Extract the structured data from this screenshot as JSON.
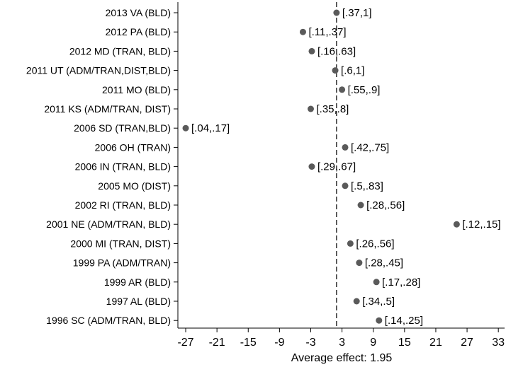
{
  "chart_data": {
    "type": "scatter",
    "title": "",
    "xlabel_prefix": "Average effect:",
    "average_effect": 1.95,
    "xlim": [
      -28.5,
      34.2
    ],
    "xticks": [
      -27,
      -21,
      -15,
      -9,
      -3,
      3,
      9,
      15,
      21,
      27,
      33
    ],
    "xtick_labels": [
      "-27",
      "-21",
      "-15",
      "-9",
      "-3",
      "3",
      "9",
      "15",
      "21",
      "27",
      "33"
    ],
    "grid": false,
    "legend": "none",
    "marker_color": "#5a5a5a",
    "reference_line": {
      "x": 1.95,
      "style": "dashed"
    },
    "points": [
      {
        "label": "2013 VA (BLD)",
        "x": 1.95,
        "interval": "[.37,1]"
      },
      {
        "label": "2012 PA (BLD)",
        "x": -4.5,
        "interval": "[.11,.37]"
      },
      {
        "label": "2012 MD (TRAN, BLD)",
        "x": -2.8,
        "interval": "[.16,.63]"
      },
      {
        "label": "2011 UT (ADM/TRAN,DIST,BLD)",
        "x": 1.7,
        "interval": "[.6,1]"
      },
      {
        "label": "2011 MO (BLD)",
        "x": 3.0,
        "interval": "[.55,.9]"
      },
      {
        "label": "2011 KS (ADM/TRAN, DIST)",
        "x": -3.0,
        "interval": "[.35,.8]"
      },
      {
        "label": "2006 SD (TRAN,BLD)",
        "x": -27.0,
        "interval": "[.04,.17]"
      },
      {
        "label": "2006 OH (TRAN)",
        "x": 3.6,
        "interval": "[.42,.75]"
      },
      {
        "label": "2006 IN (TRAN, BLD)",
        "x": -2.8,
        "interval": "[.29,.67]"
      },
      {
        "label": "2005 MO (DIST)",
        "x": 3.6,
        "interval": "[.5,.83]"
      },
      {
        "label": "2002 RI (TRAN, BLD)",
        "x": 6.6,
        "interval": "[.28,.56]"
      },
      {
        "label": "2001 NE (ADM/TRAN, BLD)",
        "x": 25.0,
        "interval": "[.12,.15]"
      },
      {
        "label": "2000 MI (TRAN, DIST)",
        "x": 4.6,
        "interval": "[.26,.56]"
      },
      {
        "label": "1999 PA (ADM/TRAN)",
        "x": 6.3,
        "interval": "[.28,.45]"
      },
      {
        "label": "1999 AR (BLD)",
        "x": 9.6,
        "interval": "[.17,.28]"
      },
      {
        "label": "1997 AL (BLD)",
        "x": 5.8,
        "interval": "[.34,.5]"
      },
      {
        "label": "1996 SC (ADM/TRAN, BLD)",
        "x": 10.1,
        "interval": "[.14,.25]"
      }
    ]
  }
}
